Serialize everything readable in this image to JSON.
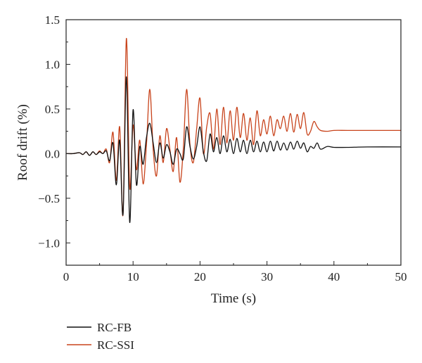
{
  "chart_data": {
    "type": "line",
    "title": "",
    "xlabel": "Time (s)",
    "ylabel": "Roof drift (%)",
    "xlim": [
      0,
      50
    ],
    "ylim": [
      -1.25,
      1.5
    ],
    "xticks": [
      0,
      10,
      20,
      30,
      40,
      50
    ],
    "yticks": [
      -1.0,
      -0.5,
      0.0,
      0.5,
      1.0,
      1.5
    ],
    "xtick_labels": [
      "0",
      "10",
      "20",
      "30",
      "40",
      "50"
    ],
    "ytick_labels": [
      "−1.0",
      "−0.5",
      "0.0",
      "0.5",
      "1.0",
      "1.5"
    ],
    "grid": false,
    "legend_position": "bottom-left, below the plot",
    "series": [
      {
        "name": "RC-FB",
        "color": "#111111",
        "x": [
          0,
          1,
          2,
          2.5,
          3,
          3.5,
          4,
          4.5,
          5,
          5.5,
          6,
          6.5,
          7,
          7.5,
          8,
          8.5,
          9,
          9.5,
          10,
          10.5,
          11,
          11.5,
          12,
          12.5,
          13,
          13.5,
          14,
          14.5,
          15,
          15.5,
          16,
          16.5,
          17,
          17.5,
          18,
          18.5,
          19,
          19.5,
          20,
          20.5,
          21,
          21.5,
          22,
          22.5,
          23,
          23.5,
          24,
          24.5,
          25,
          25.5,
          26,
          26.5,
          27,
          27.5,
          28,
          28.5,
          29,
          29.5,
          30,
          30.5,
          31,
          31.5,
          32,
          32.5,
          33,
          33.5,
          34,
          34.5,
          35,
          35.5,
          36,
          36.5,
          37,
          37.5,
          38,
          39,
          40,
          42,
          45,
          50
        ],
        "y": [
          0.0,
          0.0,
          0.01,
          -0.01,
          0.02,
          -0.02,
          0.02,
          -0.01,
          0.02,
          0.0,
          0.03,
          -0.08,
          0.12,
          -0.35,
          0.15,
          -0.68,
          0.86,
          -0.77,
          0.49,
          -0.35,
          0.08,
          -0.12,
          0.18,
          0.34,
          0.12,
          -0.1,
          0.12,
          -0.05,
          0.1,
          0.02,
          -0.12,
          0.05,
          0.0,
          -0.06,
          0.3,
          0.08,
          -0.06,
          0.08,
          0.3,
          0.02,
          -0.08,
          0.22,
          0.02,
          0.18,
          0.0,
          0.2,
          0.02,
          0.16,
          0.0,
          0.17,
          0.02,
          0.15,
          0.0,
          0.15,
          0.02,
          0.14,
          0.02,
          0.13,
          0.02,
          0.14,
          0.03,
          0.14,
          0.04,
          0.12,
          0.04,
          0.13,
          0.05,
          0.14,
          0.06,
          0.12,
          0.02,
          0.08,
          0.06,
          0.12,
          0.05,
          0.08,
          0.07,
          0.07,
          0.075,
          0.075
        ]
      },
      {
        "name": "RC-SSI",
        "color": "#c8431b",
        "x": [
          0,
          1,
          2,
          2.5,
          3,
          3.5,
          4,
          4.5,
          5,
          5.5,
          6,
          6.5,
          7,
          7.5,
          8,
          8.5,
          9,
          9.5,
          10,
          10.5,
          11,
          11.5,
          12,
          12.5,
          13,
          13.5,
          14,
          14.5,
          15,
          15.5,
          16,
          16.5,
          17,
          17.5,
          18,
          18.5,
          19,
          19.5,
          20,
          20.5,
          21,
          21.5,
          22,
          22.5,
          23,
          23.5,
          24,
          24.5,
          25,
          25.5,
          26,
          26.5,
          27,
          27.5,
          28,
          28.5,
          29,
          29.5,
          30,
          30.5,
          31,
          31.5,
          32,
          32.5,
          33,
          33.5,
          34,
          34.5,
          35,
          35.5,
          36,
          36.5,
          37,
          37.5,
          38,
          39,
          40,
          42,
          45,
          50
        ],
        "y": [
          0.0,
          0.0,
          0.01,
          -0.01,
          0.02,
          -0.02,
          0.02,
          -0.01,
          0.03,
          0.0,
          0.05,
          -0.1,
          0.24,
          -0.3,
          0.3,
          -0.68,
          1.29,
          -0.38,
          0.32,
          -0.18,
          0.15,
          -0.34,
          0.1,
          0.72,
          0.05,
          -0.25,
          0.2,
          -0.1,
          0.28,
          0.05,
          -0.2,
          0.18,
          -0.32,
          0.05,
          0.72,
          0.1,
          -0.1,
          0.28,
          0.62,
          0.0,
          0.3,
          0.45,
          0.05,
          0.5,
          0.1,
          0.52,
          0.12,
          0.48,
          0.15,
          0.52,
          0.18,
          0.45,
          0.15,
          0.4,
          0.1,
          0.48,
          0.2,
          0.38,
          0.22,
          0.42,
          0.2,
          0.38,
          0.28,
          0.42,
          0.25,
          0.45,
          0.24,
          0.44,
          0.28,
          0.46,
          0.22,
          0.25,
          0.36,
          0.3,
          0.26,
          0.25,
          0.26,
          0.26,
          0.26,
          0.26
        ]
      }
    ]
  }
}
